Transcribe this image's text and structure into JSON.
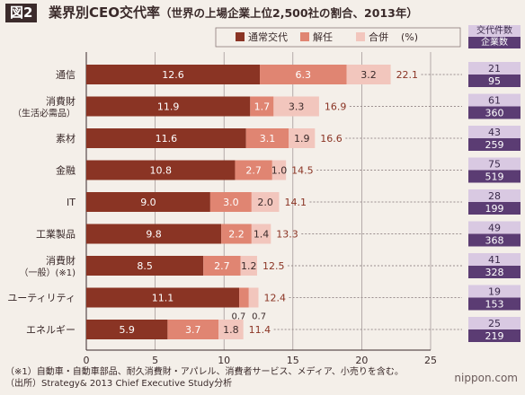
{
  "figure": {
    "tag": "図2",
    "title": "業界別CEO交代率",
    "subtitle": "（世界の上場企業上位2,500社の割合、2013年）"
  },
  "colors": {
    "ordinary": "#8a3424",
    "dismissal": "#e08572",
    "merger": "#f2c6bd",
    "count_top_bg": "#d9c9e2",
    "count_bottom_bg": "#5b3c73"
  },
  "legend": {
    "items": [
      "通常交代",
      "解任",
      "合併"
    ],
    "unit": "(%)"
  },
  "count_header": {
    "line1": "交代件数",
    "line2": "企業数"
  },
  "chart_data": {
    "type": "bar",
    "orientation": "horizontal",
    "stacked": true,
    "categories": [
      [
        "通信"
      ],
      [
        "消費財",
        "（生活必需品）"
      ],
      [
        "素材"
      ],
      [
        "金融"
      ],
      [
        "IT"
      ],
      [
        "工業製品"
      ],
      [
        "消費財",
        "（一般）(※1)"
      ],
      [
        "ユーティリティ"
      ],
      [
        "エネルギー"
      ]
    ],
    "series": [
      {
        "name": "通常交代",
        "values": [
          12.6,
          11.9,
          11.6,
          10.8,
          9.0,
          9.8,
          8.5,
          11.1,
          5.9
        ]
      },
      {
        "name": "解任",
        "values": [
          6.3,
          1.7,
          3.1,
          2.7,
          3.0,
          2.2,
          2.7,
          0.7,
          3.7
        ]
      },
      {
        "name": "合併",
        "values": [
          3.2,
          3.3,
          1.9,
          1.0,
          2.0,
          1.4,
          1.2,
          0.7,
          1.8
        ]
      }
    ],
    "totals": [
      22.1,
      16.9,
      16.6,
      14.5,
      14.1,
      13.3,
      12.5,
      12.4,
      11.4
    ],
    "succession_counts": [
      21,
      61,
      43,
      75,
      28,
      49,
      41,
      19,
      25
    ],
    "company_counts": [
      95,
      360,
      259,
      519,
      199,
      368,
      328,
      153,
      219
    ],
    "xlim": [
      0,
      25
    ],
    "xticks": [
      0,
      5,
      10,
      15,
      20,
      25
    ],
    "grid": "vertical",
    "legend_position": "top"
  },
  "footnotes": [
    "（※1）自動車・自動車部品、耐久消費財・アパレル、消費者サービス、メディア、小売りを含む。",
    "（出所）Strategy& 2013 Chief Executive Study分析"
  ],
  "brand": "nippon.com"
}
